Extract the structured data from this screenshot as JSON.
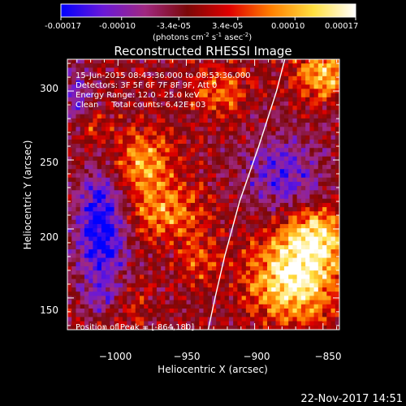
{
  "colorbar": {
    "ticks": [
      "-0.00017",
      "-0.00010",
      "-3.4e-05",
      "3.4e-05",
      "0.00010",
      "0.00017"
    ],
    "tick_values": [
      -0.00017,
      -0.0001,
      -3.4e-05,
      3.4e-05,
      0.0001,
      0.00017
    ],
    "range": [
      -0.00017,
      0.00017
    ],
    "units": "(photons cm",
    "units_sup1": "-2",
    "units_mid": " s",
    "units_sup2": "-1",
    "units_end": " asec",
    "units_sup3": "-2",
    "units_close": ")",
    "colors": [
      "#0000ff",
      "#6a18d8",
      "#a02880",
      "#7a0808",
      "#e00000",
      "#ff8000",
      "#ffe040",
      "#ffffff"
    ]
  },
  "chart_data": {
    "type": "heatmap",
    "title": "Reconstructed RHESSI Image",
    "xlabel": "Heliocentric X (arcsec)",
    "ylabel": "Heliocentric Y (arcsec)",
    "xlim": [
      -1037,
      -838
    ],
    "ylim": [
      127,
      323
    ],
    "x_ticks": [
      -1000,
      -950,
      -900,
      -850
    ],
    "x_tick_labels": [
      "−1000",
      "−950",
      "−900",
      "−850"
    ],
    "y_ticks": [
      150,
      200,
      250,
      300
    ],
    "y_tick_labels": [
      "150",
      "200",
      "250",
      "300"
    ],
    "annotations": [
      "15-Jun-2015 08:43:36.000 to 08:53:36.000",
      "Detectors: 3F 5F 6F 7F 8F 9F, Att 0",
      "Energy Range: 12.0 - 25.0 keV",
      "Clean     Total counts: 6.42E+03"
    ],
    "peak_label": "Position of Peak = [-864,180]",
    "peak": [
      -864,
      180
    ],
    "limb_curve": [
      [
        -934,
        127
      ],
      [
        -929,
        150
      ],
      [
        -922,
        180
      ],
      [
        -911,
        220
      ],
      [
        -897,
        260
      ],
      [
        -884,
        300
      ],
      [
        -878,
        323
      ]
    ],
    "sources": [
      {
        "x": -872,
        "y": 165,
        "sx": 22,
        "sy": 22,
        "amp": 1.0
      },
      {
        "x": -855,
        "y": 195,
        "sx": 15,
        "sy": 15,
        "amp": 0.75
      },
      {
        "x": -982,
        "y": 248,
        "sx": 16,
        "sy": 16,
        "amp": 0.65
      },
      {
        "x": -965,
        "y": 212,
        "sx": 20,
        "sy": 14,
        "amp": 0.55
      },
      {
        "x": -1020,
        "y": 272,
        "sx": 10,
        "sy": 10,
        "amp": 0.35
      },
      {
        "x": -1000,
        "y": 145,
        "sx": 14,
        "sy": 12,
        "amp": 0.35
      },
      {
        "x": -940,
        "y": 178,
        "sx": 10,
        "sy": 12,
        "amp": 0.35
      },
      {
        "x": -850,
        "y": 312,
        "sx": 14,
        "sy": 12,
        "amp": 0.75
      },
      {
        "x": -925,
        "y": 300,
        "sx": 14,
        "sy": 12,
        "amp": 0.45
      },
      {
        "x": -1012,
        "y": 202,
        "sx": 13,
        "sy": 30,
        "amp": -0.85
      },
      {
        "x": -1010,
        "y": 150,
        "sx": 10,
        "sy": 10,
        "amp": -0.5
      },
      {
        "x": -880,
        "y": 240,
        "sx": 20,
        "sy": 20,
        "amp": -0.55
      },
      {
        "x": -1030,
        "y": 295,
        "sx": 8,
        "sy": 18,
        "amp": -0.4
      }
    ]
  },
  "footer": {
    "timestamp": "22-Nov-2017 14:51"
  }
}
